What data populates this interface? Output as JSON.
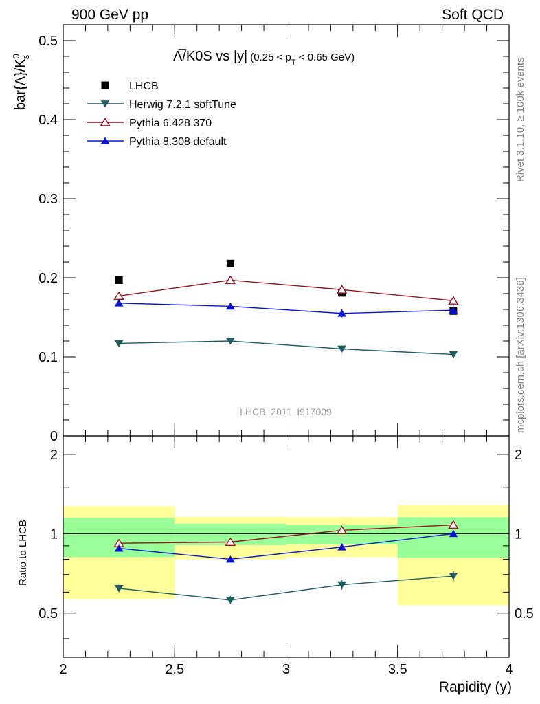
{
  "header": {
    "left": "900 GeV pp",
    "right": "Soft QCD"
  },
  "side": {
    "rivet": "Rivet 3.1.10, ≥ 100k events",
    "mcplots": "mcplots.cern.ch [arXiv:1306.3436]"
  },
  "chart_data": [
    {
      "type": "scatter",
      "title_main": "Λ̅/K0S vs |y|",
      "title_cut_left": "(0.25 < p",
      "title_cut_sub": "T",
      "title_cut_right": " < 0.65 GeV)",
      "ylabel_main": "bar{Λ}/K",
      "ylabel_sup": "0",
      "ylabel_sub": "s",
      "watermark": "LHCB_2011_I917009",
      "xlim": [
        2,
        4
      ],
      "ylim": [
        0,
        0.52
      ],
      "yticks": [
        {
          "v": 0.1,
          "label": "0.1"
        },
        {
          "v": 0.2,
          "label": "0.2"
        },
        {
          "v": 0.3,
          "label": "0.3"
        },
        {
          "v": 0.4,
          "label": "0.4"
        },
        {
          "v": 0.5,
          "label": "0.5"
        },
        {
          "v": 0.0,
          "label": "0"
        }
      ],
      "x": [
        2.25,
        2.75,
        3.25,
        3.75
      ],
      "series": [
        {
          "name": "LHCB",
          "marker": "square",
          "color": "#000000",
          "values": [
            0.197,
            0.218,
            0.181,
            0.158
          ],
          "errors": [
            0.0,
            0.0,
            0.0,
            0.0
          ]
        },
        {
          "name": "Herwig 7.2.1 softTune",
          "marker": "triangle-down",
          "color": "#1e5c64",
          "values": [
            0.117,
            0.12,
            0.11,
            0.103
          ],
          "errors": [
            0.003,
            0.003,
            0.004,
            0.004
          ]
        },
        {
          "name": "Pythia 6.428 370",
          "marker": "triangle-up-open",
          "color": "#9b0f1e",
          "values": [
            0.177,
            0.197,
            0.185,
            0.171
          ],
          "errors": [
            0.004,
            0.005,
            0.006,
            0.006
          ]
        },
        {
          "name": "Pythia 8.308 default",
          "marker": "triangle-up",
          "color": "#0a14d0",
          "values": [
            0.168,
            0.164,
            0.155,
            0.159
          ],
          "errors": [
            0.003,
            0.004,
            0.005,
            0.005
          ]
        }
      ],
      "legend_position": "top-left"
    },
    {
      "type": "scatter",
      "ylabel": "Ratio to LHCB",
      "xlabel": "Rapidity (y)",
      "xlim": [
        2,
        4
      ],
      "ylim": [
        0.34,
        2.35
      ],
      "xticks": [
        {
          "v": 2,
          "label": "2"
        },
        {
          "v": 2.5,
          "label": "2.5"
        },
        {
          "v": 3,
          "label": "3"
        },
        {
          "v": 3.5,
          "label": "3.5"
        },
        {
          "v": 4,
          "label": "4"
        }
      ],
      "yticks": [
        {
          "v": 0.5,
          "label": "0.5"
        },
        {
          "v": 1,
          "label": "1"
        },
        {
          "v": 2,
          "label": "2"
        }
      ],
      "bands": [
        {
          "x0": 2.0,
          "x1": 2.5,
          "inner": [
            0.815,
            1.15
          ],
          "outer": [
            0.565,
            1.27
          ]
        },
        {
          "x0": 2.5,
          "x1": 3.0,
          "inner": [
            0.905,
            1.09
          ],
          "outer": [
            0.8,
            1.16
          ]
        },
        {
          "x0": 3.0,
          "x1": 3.5,
          "inner": [
            0.91,
            1.08
          ],
          "outer": [
            0.815,
            1.155
          ]
        },
        {
          "x0": 3.5,
          "x1": 4.0,
          "inner": [
            0.81,
            1.155
          ],
          "outer": [
            0.535,
            1.285
          ]
        }
      ],
      "band_colors": {
        "inner": "#99ff99",
        "outer": "#ffff99"
      },
      "x": [
        2.25,
        2.75,
        3.25,
        3.75
      ],
      "series": [
        {
          "name": "Herwig 7.2.1 softTune",
          "marker": "triangle-down",
          "color": "#1e5c64",
          "values": [
            0.62,
            0.56,
            0.64,
            0.69
          ],
          "errors": [
            0.02,
            0.02,
            0.025,
            0.03
          ]
        },
        {
          "name": "Pythia 6.428 370",
          "marker": "triangle-up-open",
          "color": "#9b0f1e",
          "values": [
            0.92,
            0.93,
            1.03,
            1.08
          ],
          "errors": [
            0.02,
            0.02,
            0.025,
            0.03
          ]
        },
        {
          "name": "Pythia 8.308 default",
          "marker": "triangle-up",
          "color": "#0a14d0",
          "values": [
            0.88,
            0.8,
            0.89,
            1.0
          ],
          "errors": [
            0.015,
            0.02,
            0.02,
            0.025
          ]
        }
      ],
      "reference_line": 1
    }
  ]
}
